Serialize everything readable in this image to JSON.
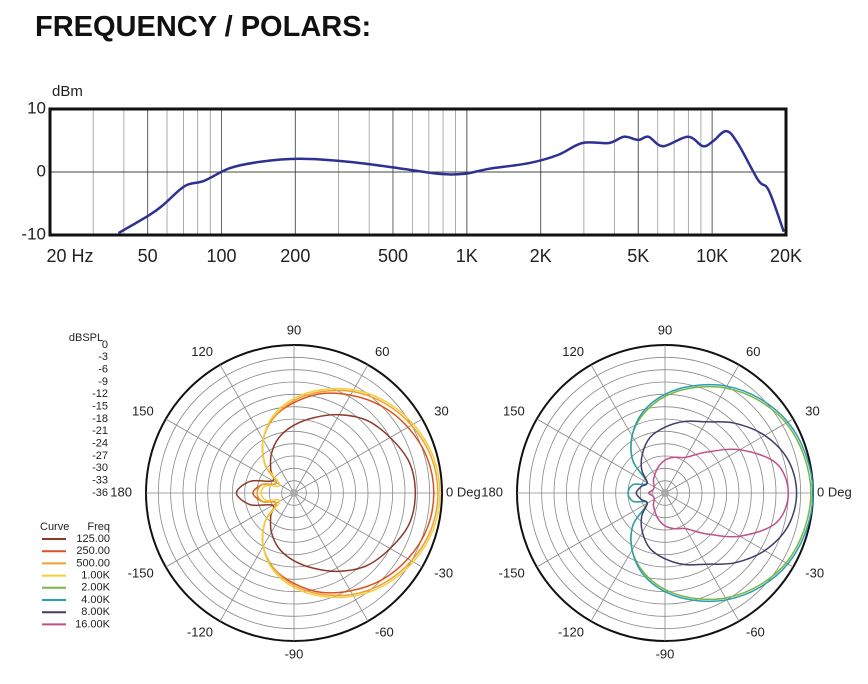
{
  "chart_data": [
    {
      "type": "line",
      "title": "FREQUENCY / POLARS:",
      "y_label": "dBm",
      "color": "#2e3192",
      "log_x": true,
      "grid": true,
      "x": [
        38,
        51,
        58,
        71,
        85,
        108,
        143,
        208,
        332,
        528,
        770,
        974,
        1230,
        1785,
        2350,
        2960,
        3800,
        4370,
        5000,
        5500,
        6300,
        7960,
        9170,
        10100,
        11400,
        12700,
        15400,
        17000,
        19600
      ],
      "values": [
        -9.7,
        -6.8,
        -5.2,
        -2.2,
        -1.4,
        0.6,
        1.6,
        2.1,
        1.6,
        0.6,
        -0.3,
        -0.3,
        0.5,
        1.4,
        2.7,
        4.6,
        4.6,
        5.6,
        5.1,
        5.6,
        4.1,
        5.6,
        4.1,
        4.9,
        6.5,
        4.6,
        -1.3,
        -2.9,
        -9.5
      ],
      "xlim": [
        20,
        20000
      ],
      "ylim": [
        -10,
        10
      ],
      "xticks": [
        {
          "value": 20,
          "label": "20 Hz"
        },
        50,
        100,
        200,
        500,
        {
          "value": 1000,
          "label": "1K"
        },
        {
          "value": 2000,
          "label": "2K"
        },
        {
          "value": 5000,
          "label": "5K"
        },
        {
          "value": 10000,
          "label": "10K"
        },
        {
          "value": 20000,
          "label": "20K"
        }
      ],
      "yticks": [
        -10,
        0,
        10
      ]
    },
    {
      "type": "polar",
      "r_label": "dBSPL",
      "rtick_labels": true,
      "rlim": [
        -36,
        0
      ],
      "rticks": [
        0,
        -3,
        -6,
        -9,
        -12,
        -15,
        -18,
        -21,
        -24,
        -27,
        -30,
        -33,
        -36
      ],
      "thetaticks": [
        {
          "value": 0,
          "label": "0 Deg"
        },
        30,
        60,
        90,
        120,
        150,
        180,
        -150,
        -120,
        -90,
        -60,
        -30
      ],
      "legend_headers": [
        "Curve",
        "Freq"
      ],
      "theta": [
        -180,
        -165,
        -150,
        -135,
        -120,
        -105,
        -90,
        -75,
        -60,
        -45,
        -30,
        -15,
        0,
        15,
        30,
        45,
        60,
        75,
        90,
        105,
        120,
        135,
        150,
        165
      ],
      "series": [
        {
          "name": "125.00",
          "color": "#8b3a2a",
          "values": [
            -22,
            -25,
            -30,
            -28,
            -25,
            -22,
            -19.5,
            -17,
            -14,
            -11,
            -9,
            -7,
            -6.5,
            -7,
            -9,
            -11,
            -14,
            -17,
            -19.5,
            -22,
            -25,
            -28,
            -30,
            -25
          ]
        },
        {
          "name": "250.00",
          "color": "#d9531e",
          "values": [
            -26,
            -28,
            -31,
            -26,
            -21,
            -17,
            -14,
            -11,
            -8.5,
            -6,
            -4,
            -2.5,
            -2,
            -2.5,
            -4,
            -6,
            -8.5,
            -11,
            -14,
            -17,
            -21,
            -26,
            -31,
            -28
          ]
        },
        {
          "name": "500.00",
          "color": "#f0a030",
          "values": [
            -27,
            -28,
            -31,
            -26,
            -21,
            -17,
            -13.5,
            -10.5,
            -7.5,
            -5,
            -3,
            -1.5,
            -1,
            -1.5,
            -3,
            -5,
            -7.5,
            -10.5,
            -13.5,
            -17,
            -21,
            -26,
            -31,
            -28
          ]
        },
        {
          "name": "1.00K",
          "color": "#f2cf3c",
          "values": [
            -28,
            -29,
            -32,
            -26,
            -21,
            -16.5,
            -13,
            -10,
            -7,
            -4.5,
            -2.5,
            -1,
            -0.5,
            -1,
            -2.5,
            -4.5,
            -7,
            -10,
            -13,
            -16.5,
            -21,
            -26,
            -32,
            -29
          ]
        }
      ]
    },
    {
      "type": "polar",
      "rtick_labels": false,
      "rlim": [
        -36,
        0
      ],
      "rticks": [
        0,
        -3,
        -6,
        -9,
        -12,
        -15,
        -18,
        -21,
        -24,
        -27,
        -30,
        -33,
        -36
      ],
      "thetaticks": [
        {
          "value": 0,
          "label": "0 Deg"
        },
        30,
        60,
        90,
        120,
        150,
        180,
        -150,
        -120,
        -90,
        -60,
        -30
      ],
      "theta": [
        -180,
        -165,
        -150,
        -135,
        -120,
        -105,
        -90,
        -75,
        -60,
        -45,
        -30,
        -15,
        0,
        15,
        30,
        45,
        60,
        75,
        90,
        105,
        120,
        135,
        150,
        165
      ],
      "series": [
        {
          "name": "2.00K",
          "color": "#7ab648",
          "values": [
            -27,
            -28,
            -31,
            -25,
            -20,
            -16,
            -12.5,
            -9.5,
            -6.5,
            -4,
            -2,
            -1,
            -0.5,
            -1,
            -2,
            -4,
            -6.5,
            -9.5,
            -12.5,
            -16,
            -20,
            -25,
            -31,
            -28
          ]
        },
        {
          "name": "4.00K",
          "color": "#2a9fb0",
          "values": [
            -27,
            -28,
            -31,
            -25,
            -20,
            -15.5,
            -12,
            -9,
            -6,
            -3.5,
            -1.5,
            -0.5,
            0,
            -0.5,
            -1.5,
            -3.5,
            -6,
            -9,
            -12,
            -15.5,
            -20,
            -25,
            -31,
            -28
          ]
        },
        {
          "name": "8.00K",
          "color": "#3d3d6b",
          "values": [
            -29,
            -30,
            -31,
            -28,
            -25,
            -22,
            -20,
            -18,
            -16,
            -12,
            -8,
            -5,
            -4,
            -5,
            -8,
            -12,
            -16,
            -18,
            -20,
            -22,
            -25,
            -28,
            -31,
            -30
          ]
        },
        {
          "name": "16.00K",
          "color": "#c0508a",
          "values": [
            -32,
            -33,
            -33,
            -32,
            -31,
            -29.5,
            -28,
            -27,
            -26,
            -22,
            -15,
            -8,
            -6,
            -8,
            -15,
            -22,
            -26,
            -27,
            -28,
            -29.5,
            -31,
            -32,
            -33,
            -33
          ]
        }
      ]
    }
  ]
}
